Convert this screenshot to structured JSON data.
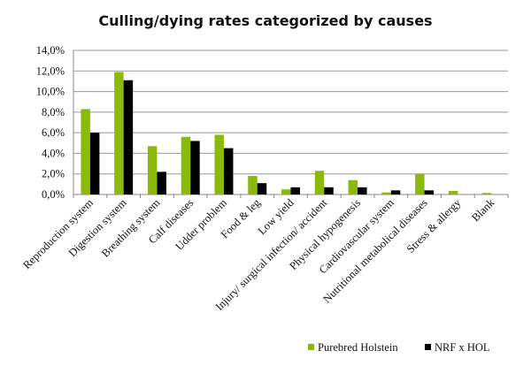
{
  "chart_data": {
    "type": "bar",
    "title": "Culling/dying rates categorized by causes",
    "xlabel": "",
    "ylabel": "",
    "ylim": [
      0,
      14
    ],
    "yticks": [
      "0,0%",
      "2,0%",
      "4,0%",
      "6,0%",
      "8,0%",
      "10,0%",
      "12,0%",
      "14,0%"
    ],
    "grid": true,
    "legend_position": "bottom-right",
    "categories": [
      "Reproduction system",
      "Digestion system",
      "Breathing system",
      "Calf diseases",
      "Udder problem",
      "Food & leg",
      "Low yield",
      "Injury/ surgical infection/ accident",
      "Physical hypogenesis",
      "Cardiovascular system",
      "Nutritional metabolical diseases",
      "Stress & allergy",
      "Blank"
    ],
    "series": [
      {
        "name": "Purebred Holstein",
        "color": "#8cba0a",
        "values": [
          8.3,
          11.9,
          4.7,
          5.6,
          5.8,
          1.8,
          0.5,
          2.3,
          1.4,
          0.2,
          2.0,
          0.35,
          0.15
        ]
      },
      {
        "name": "NRF x HOL",
        "color": "#000000",
        "values": [
          6.0,
          11.1,
          2.2,
          5.2,
          4.5,
          1.1,
          0.7,
          0.7,
          0.7,
          0.4,
          0.4,
          0,
          0
        ]
      }
    ]
  }
}
